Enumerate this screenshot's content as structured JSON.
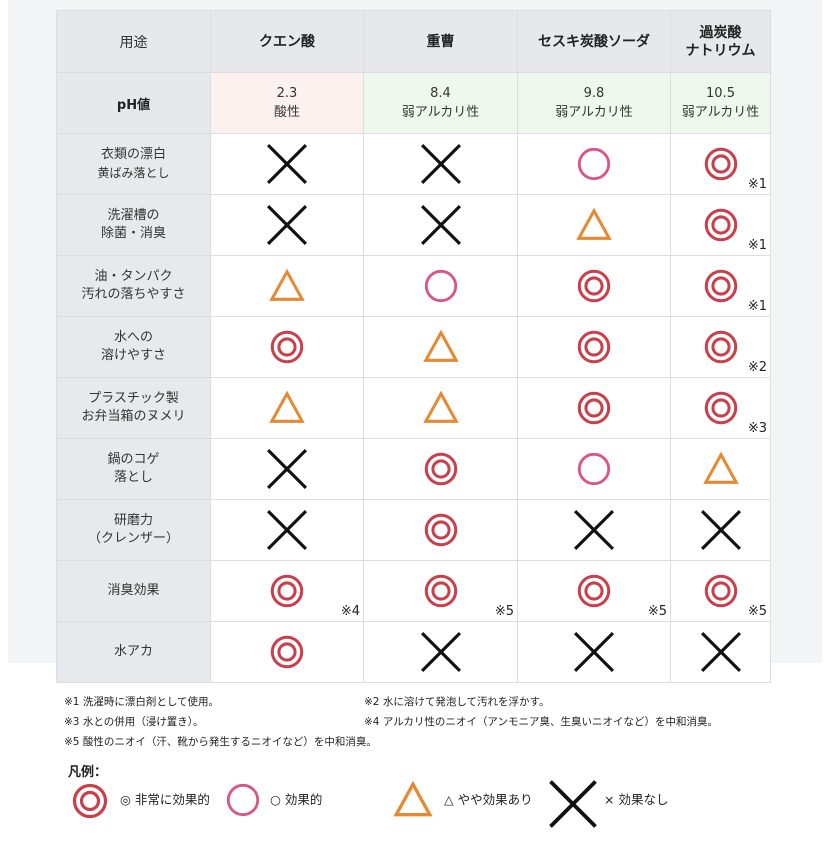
{
  "table": {
    "header": {
      "label": "用途",
      "columns": [
        {
          "lines": [
            "クエン酸"
          ]
        },
        {
          "lines": [
            "重曹"
          ]
        },
        {
          "lines": [
            "セスキ炭酸ソーダ"
          ]
        },
        {
          "lines": [
            "過炭酸",
            "ナトリウム"
          ]
        }
      ]
    },
    "ph_row": {
      "label": "pH値",
      "values": [
        {
          "value": "2.3",
          "nature": "酸性"
        },
        {
          "value": "8.4",
          "nature": "弱アルカリ性"
        },
        {
          "value": "9.8",
          "nature": "弱アルカリ性"
        },
        {
          "value": "10.5",
          "nature": "弱アルカリ性"
        }
      ]
    },
    "rows": [
      {
        "label": [
          "衣類の漂白",
          "黄ばみ落とし"
        ],
        "cells": [
          {
            "rating": "none"
          },
          {
            "rating": "none"
          },
          {
            "rating": "effective"
          },
          {
            "rating": "very",
            "note": "※1"
          }
        ]
      },
      {
        "label": [
          "洗濯槽の",
          "除菌・消臭"
        ],
        "cells": [
          {
            "rating": "none"
          },
          {
            "rating": "none"
          },
          {
            "rating": "somewhat"
          },
          {
            "rating": "very",
            "note": "※1"
          }
        ]
      },
      {
        "label": [
          "油・タンパク",
          "汚れの落ちやすさ"
        ],
        "cells": [
          {
            "rating": "somewhat"
          },
          {
            "rating": "effective"
          },
          {
            "rating": "very"
          },
          {
            "rating": "very",
            "note": "※1"
          }
        ]
      },
      {
        "label": [
          "水への",
          "溶けやすさ"
        ],
        "cells": [
          {
            "rating": "very"
          },
          {
            "rating": "somewhat"
          },
          {
            "rating": "very"
          },
          {
            "rating": "very",
            "note": "※2"
          }
        ]
      },
      {
        "label": [
          "プラスチック製",
          "お弁当箱のヌメリ"
        ],
        "cells": [
          {
            "rating": "somewhat"
          },
          {
            "rating": "somewhat"
          },
          {
            "rating": "very"
          },
          {
            "rating": "very",
            "note": "※3"
          }
        ]
      },
      {
        "label": [
          "鍋のコゲ",
          "落とし"
        ],
        "cells": [
          {
            "rating": "none"
          },
          {
            "rating": "very"
          },
          {
            "rating": "effective"
          },
          {
            "rating": "somewhat"
          }
        ]
      },
      {
        "label": [
          "研磨力",
          "（クレンザー）"
        ],
        "cells": [
          {
            "rating": "none"
          },
          {
            "rating": "very"
          },
          {
            "rating": "none"
          },
          {
            "rating": "none"
          }
        ]
      },
      {
        "label": [
          "消臭効果"
        ],
        "cells": [
          {
            "rating": "very",
            "note": "※4"
          },
          {
            "rating": "very",
            "note": "※5"
          },
          {
            "rating": "very",
            "note": "※5"
          },
          {
            "rating": "very",
            "note": "※5"
          }
        ]
      },
      {
        "label": [
          "水アカ"
        ],
        "cells": [
          {
            "rating": "very"
          },
          {
            "rating": "none"
          },
          {
            "rating": "none"
          },
          {
            "rating": "none"
          }
        ]
      }
    ]
  },
  "notes": {
    "n1": "※1 洗濯時に漂白剤として使用。",
    "n2": "※2 水に溶けて発泡して汚れを浮かす。",
    "n3": "※3 水との併用（浸け置き）。",
    "n4": "※4 アルカリ性のニオイ（アンモニア臭、生臭いニオイなど）を中和消臭。",
    "n5": "※5 酸性のニオイ（汗、靴から発生するニオイなど）を中和消臭。"
  },
  "legend": {
    "title": "凡例：",
    "very": "◎ 非常に効果的",
    "effective": "○ 効果的",
    "somewhat": "△ やや効果あり",
    "none": "× 効果なし"
  },
  "colors": {
    "double_circle": "#c9404a",
    "circle": "#d9558a",
    "triangle": "#e58a33",
    "cross": "#111111",
    "ph_acid_bg": "#fdf1ef",
    "ph_alkaline_bg": "#eff8ec",
    "header_bg": "#e6e8eb"
  },
  "icons": {
    "very": "double-circle-icon",
    "effective": "circle-icon",
    "somewhat": "triangle-icon",
    "none": "cross-icon"
  }
}
